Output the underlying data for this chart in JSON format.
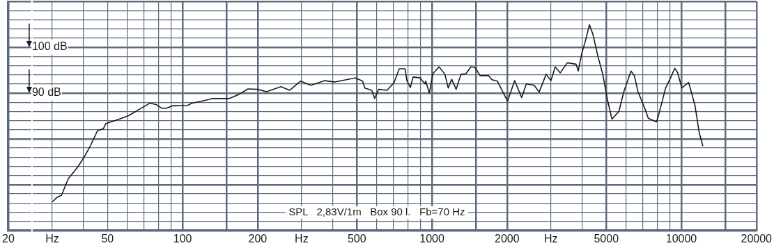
{
  "chart_data": {
    "type": "line",
    "log": "x",
    "grid": true,
    "legend": false,
    "marker": "none",
    "line_style": "solid",
    "xlim": [
      20,
      20000
    ],
    "ylim": [
      60,
      110
    ],
    "xticks": [
      20,
      {
        "value": 30,
        "label": "Hz"
      },
      {
        "value": 40,
        "label": null
      },
      50,
      {
        "value": 60,
        "label": null
      },
      {
        "value": 70,
        "label": null
      },
      {
        "value": 80,
        "label": null
      },
      {
        "value": 90,
        "label": null
      },
      100,
      {
        "value": 150,
        "label": null
      },
      200,
      {
        "value": 300,
        "label": "Hz"
      },
      {
        "value": 400,
        "label": null
      },
      500,
      {
        "value": 600,
        "label": null
      },
      {
        "value": 700,
        "label": null
      },
      {
        "value": 800,
        "label": null
      },
      {
        "value": 900,
        "label": null
      },
      1000,
      {
        "value": 1500,
        "label": null
      },
      2000,
      {
        "value": 3000,
        "label": "Hz"
      },
      {
        "value": 4000,
        "label": null
      },
      5000,
      {
        "value": 6000,
        "label": null
      },
      {
        "value": 7000,
        "label": null
      },
      {
        "value": 8000,
        "label": null
      },
      {
        "value": 9000,
        "label": null
      },
      10000,
      {
        "value": 15000,
        "label": null
      },
      20000
    ],
    "yticks": [
      {
        "value": 60,
        "label": null
      },
      {
        "value": 62,
        "label": null
      },
      {
        "value": 64,
        "label": null
      },
      {
        "value": 66,
        "label": null
      },
      {
        "value": 68,
        "label": null
      },
      {
        "value": 70,
        "label": null
      },
      {
        "value": 72,
        "label": null
      },
      {
        "value": 74,
        "label": null
      },
      {
        "value": 76,
        "label": null
      },
      {
        "value": 78,
        "label": null
      },
      {
        "value": 80,
        "label": null
      },
      {
        "value": 82,
        "label": null
      },
      {
        "value": 84,
        "label": null
      },
      {
        "value": 86,
        "label": null
      },
      {
        "value": 88,
        "label": null
      },
      {
        "value": 90,
        "label": "90 dB"
      },
      {
        "value": 92,
        "label": null
      },
      {
        "value": 94,
        "label": null
      },
      {
        "value": 96,
        "label": null
      },
      {
        "value": 98,
        "label": null
      },
      {
        "value": 100,
        "label": "100 dB"
      },
      {
        "value": 102,
        "label": null
      },
      {
        "value": 104,
        "label": null
      },
      {
        "value": 106,
        "label": null
      },
      {
        "value": 108,
        "label": null
      },
      {
        "value": 110,
        "label": null
      }
    ],
    "annotations": [
      "SPL   2,83V/1m   Box 90 l.   Fb=70 Hz"
    ],
    "series": [
      {
        "color": "#1a1a1a",
        "x": [
          30.1,
          31.3,
          32.7,
          34.8,
          37.9,
          40.5,
          42.7,
          45.6,
          48.1,
          49.2,
          57,
          60.9,
          74,
          78.2,
          82.4,
          86.2,
          90.8,
          104.7,
          109,
          119,
          132,
          154,
          168,
          183,
          200,
          217,
          248,
          269,
          297,
          327,
          372,
          407,
          494,
          527,
          538,
          574,
          589,
          611,
          660,
          705,
          739,
          780,
          793,
          819,
          840,
          896,
          937,
          944,
          976,
          1008,
          1068,
          1127,
          1162,
          1200,
          1250,
          1307,
          1368,
          1432,
          1487,
          1560,
          1685,
          1740,
          1830,
          2010,
          2145,
          2290,
          2390,
          2570,
          2690,
          2870,
          3000,
          3120,
          3270,
          3490,
          3780,
          3860,
          3990,
          4120,
          4280,
          4420,
          4630,
          4840,
          5070,
          5270,
          5620,
          5880,
          6280,
          6480,
          6700,
          7140,
          7370,
          7950,
          8110,
          8650,
          9050,
          9410,
          9660,
          10040,
          10700,
          11340,
          11800,
          12190
        ],
        "values": [
          66.3,
          67.2,
          67.7,
          71.3,
          73.8,
          76.2,
          78.5,
          81.8,
          82.2,
          83.3,
          84.5,
          85.1,
          87.8,
          87.5,
          86.7,
          86.7,
          87.2,
          87.3,
          87.8,
          88.2,
          88.8,
          88.8,
          89.7,
          90.9,
          90.8,
          90.3,
          91.4,
          90.6,
          92.6,
          91.7,
          92.7,
          92.4,
          93.3,
          92.6,
          91.1,
          90.6,
          88.8,
          90.8,
          90.6,
          92.3,
          95.3,
          95.3,
          92.7,
          91.2,
          93.5,
          93.3,
          92,
          92.6,
          90,
          94.2,
          95.7,
          94.1,
          91.1,
          93,
          90.8,
          94.1,
          94.2,
          95.7,
          95.6,
          93.8,
          93.8,
          92.9,
          92.6,
          88.2,
          92.7,
          89,
          92,
          91.7,
          90.2,
          94.1,
          92.7,
          95.7,
          94.4,
          96.6,
          96.3,
          94.8,
          98.7,
          101.3,
          104.9,
          102.8,
          98,
          94.1,
          88.2,
          84.3,
          86,
          90.3,
          94.8,
          93.8,
          90.3,
          86.6,
          84.5,
          83.7,
          85.2,
          91.1,
          93.3,
          95.4,
          94.5,
          91.1,
          92.3,
          87.3,
          81.3,
          78.5
        ]
      }
    ]
  }
}
